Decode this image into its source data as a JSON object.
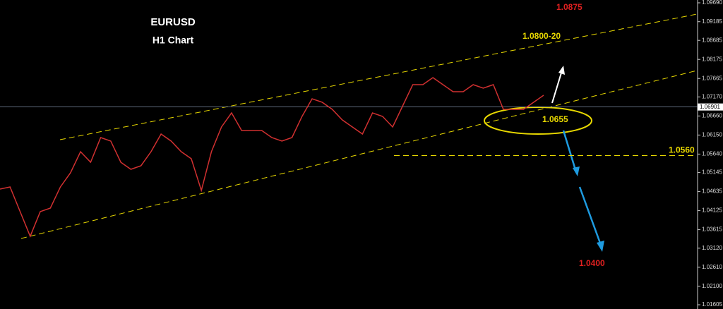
{
  "chart_data": {
    "type": "line",
    "title": "EURUSD",
    "subtitle": "H1 Chart",
    "series": [
      {
        "name": "EURUSD",
        "color": "#d03030",
        "values": [
          1.04703,
          1.0476,
          1.04099,
          1.03438,
          1.04099,
          1.04193,
          1.0476,
          1.05138,
          1.05704,
          1.05421,
          1.06082,
          1.05988,
          1.05421,
          1.05232,
          1.05327,
          1.05704,
          1.06177,
          1.05988,
          1.05704,
          1.05516,
          1.04665,
          1.05704,
          1.06366,
          1.06743,
          1.06271,
          1.06271,
          1.06271,
          1.06082,
          1.05988,
          1.06082,
          1.06649,
          1.07121,
          1.07027,
          1.06838,
          1.06554,
          1.06366,
          1.06177,
          1.06743,
          1.06649,
          1.06366,
          1.06932,
          1.07499,
          1.07499,
          1.07688,
          1.07499,
          1.0731,
          1.0731,
          1.07499,
          1.07404,
          1.07499,
          1.06838,
          1.06838,
          1.06838,
          1.07027,
          1.07215
        ]
      }
    ],
    "ylim": [
      1.01605,
      1.0969
    ],
    "yticks": [
      {
        "value": 1.0969,
        "label": "1.09690"
      },
      {
        "value": 1.09185,
        "label": "1.09185"
      },
      {
        "value": 1.08685,
        "label": "1.08685"
      },
      {
        "value": 1.08175,
        "label": "1.08175"
      },
      {
        "value": 1.07665,
        "label": "1.07665"
      },
      {
        "value": 1.0717,
        "label": "1.07170"
      },
      {
        "value": 1.0666,
        "label": "1.06660"
      },
      {
        "value": 1.0615,
        "label": "1.06150"
      },
      {
        "value": 1.0564,
        "label": "1.05640"
      },
      {
        "value": 1.05145,
        "label": "1.05145"
      },
      {
        "value": 1.04635,
        "label": "1.04635"
      },
      {
        "value": 1.04125,
        "label": "1.04125"
      },
      {
        "value": 1.03615,
        "label": "1.03615"
      },
      {
        "value": 1.0312,
        "label": "1.03120"
      },
      {
        "value": 1.0261,
        "label": "1.02610"
      },
      {
        "value": 1.021,
        "label": "1.02100"
      },
      {
        "value": 1.01605,
        "label": "1.01605"
      }
    ],
    "current_price": {
      "value": 1.06901,
      "label": "1.06901"
    },
    "annotations": {
      "top_target": "1.0875",
      "channel_top": "1.0800-20",
      "pivot": "1.0655",
      "support": {
        "value": 1.056,
        "label": "1.0560"
      },
      "bottom_target": "1.0400"
    }
  }
}
